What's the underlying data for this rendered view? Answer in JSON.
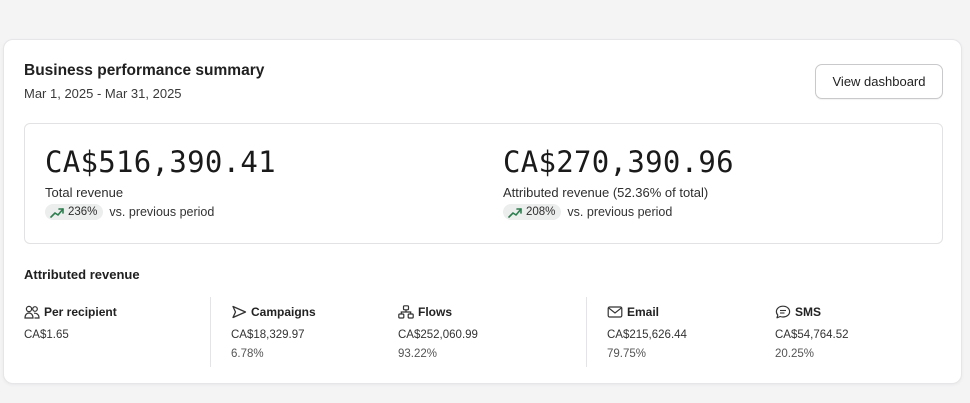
{
  "card": {
    "title": "Business performance summary",
    "date_range": "Mar 1, 2025 - Mar 31, 2025",
    "view_button_label": "View dashboard"
  },
  "metrics": [
    {
      "value": "CA$516,390.41",
      "label": "Total revenue",
      "change": "236%",
      "change_suffix": "vs. previous period",
      "trend_icon": "trend-up-icon"
    },
    {
      "value": "CA$270,390.96",
      "label": "Attributed revenue (52.36% of total)",
      "change": "208%",
      "change_suffix": "vs. previous period",
      "trend_icon": "trend-up-icon"
    }
  ],
  "attributed": {
    "section_title": "Attributed revenue",
    "columns": [
      {
        "icon": "people-icon",
        "label": "Per recipient",
        "value": "CA$1.65",
        "percent": ""
      },
      {
        "icon": "send-icon",
        "label": "Campaigns",
        "value": "CA$18,329.97",
        "percent": "6.78%"
      },
      {
        "icon": "flows-icon",
        "label": "Flows",
        "value": "CA$252,060.99",
        "percent": "93.22%"
      },
      {
        "icon": "email-icon",
        "label": "Email",
        "value": "CA$215,626.44",
        "percent": "79.75%"
      },
      {
        "icon": "sms-icon",
        "label": "SMS",
        "value": "CA$54,764.52",
        "percent": "20.25%"
      }
    ]
  },
  "colors": {
    "trend_green": "#2e7d4f",
    "pill_bg": "#eceeed"
  }
}
